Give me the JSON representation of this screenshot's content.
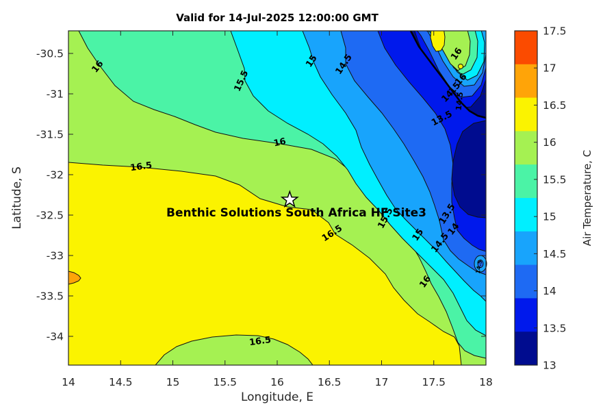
{
  "title": "Valid for 14-Jul-2025 12:00:00 GMT",
  "axes": {
    "xlabel": "Longitude, E",
    "ylabel": "Latitude, S",
    "xticks": [
      "14",
      "14.5",
      "15",
      "15.5",
      "16",
      "16.5",
      "17",
      "17.5",
      "18"
    ],
    "yticks": [
      "-30.5",
      "-31",
      "-31.5",
      "-32",
      "-32.5",
      "-33",
      "-33.5",
      "-34"
    ],
    "xlim": [
      14,
      18
    ],
    "ylim": [
      -34.36,
      -30.22
    ]
  },
  "colorbar": {
    "label": "Air Temperature, C",
    "ticks": [
      "17.5",
      "17",
      "16.5",
      "16",
      "15.5",
      "15",
      "14.5",
      "14",
      "13.5",
      "13"
    ],
    "colors_top_to_bottom": [
      "#FB4B00",
      "#FFA408",
      "#FBF300",
      "#A5F152",
      "#4BF3A6",
      "#00EFFF",
      "#18A4FC",
      "#1E6AF3",
      "#0019EC",
      "#000C8F"
    ]
  },
  "chart_data": {
    "type": "contour",
    "title": "Valid for 14-Jul-2025 12:00:00 GMT",
    "xlabel": "Longitude, E",
    "ylabel": "Latitude, S",
    "x_range": [
      14,
      18
    ],
    "y_range": [
      -34.36,
      -30.22
    ],
    "colorbar_label": "Air Temperature, C",
    "contour_levels": [
      13.5,
      14,
      14.5,
      15,
      15.5,
      16,
      16.5
    ],
    "band_colors": {
      "13-13.5": "#000C8F",
      "13.5-14": "#0019EC",
      "14-14.5": "#1E6AF3",
      "14.5-15": "#18A4FC",
      "15-15.5": "#00EFFF",
      "15.5-16": "#4BF3A6",
      "16-16.5": "#A5F152",
      "16.5-17": "#FBF300",
      "17-17.5": "#FFA408",
      "17.5-18": "#FB4B00"
    },
    "gradient_description": "warm yellow (>16.5 C) in the southwest, bands cooling toward a dark-blue (<13.5 C) pocket in the northeast; warm eddy with small yellow cores near the top-right corner; small orange warm spot (17-17.5 C) on the west edge near -33.27; cooler 16-16.5 C lobe on the bottom edge near 15.8 E",
    "site": {
      "label": "Benthic Solutions South Africa HF Site3",
      "lon": 16.12,
      "lat": -32.31,
      "marker": "star"
    },
    "contour_labels": [
      {
        "v": "16",
        "lon": 14.3,
        "lat": -30.65,
        "rot": -52
      },
      {
        "v": "16.5",
        "lon": 14.7,
        "lat": -31.9,
        "rot": -8
      },
      {
        "v": "15.5",
        "lon": 15.68,
        "lat": -30.82,
        "rot": -66
      },
      {
        "v": "16",
        "lon": 16.03,
        "lat": -31.6,
        "rot": -12
      },
      {
        "v": "15",
        "lon": 16.35,
        "lat": -30.58,
        "rot": -56
      },
      {
        "v": "14.5",
        "lon": 16.66,
        "lat": -30.62,
        "rot": -56
      },
      {
        "v": "16.5",
        "lon": 16.54,
        "lat": -32.72,
        "rot": -33
      },
      {
        "v": "15.5",
        "lon": 17.06,
        "lat": -32.52,
        "rot": -62
      },
      {
        "v": "15",
        "lon": 17.37,
        "lat": -32.73,
        "rot": -56
      },
      {
        "v": "14.5",
        "lon": 17.58,
        "lat": -32.83,
        "rot": -52
      },
      {
        "v": "14",
        "lon": 17.71,
        "lat": -32.66,
        "rot": -52
      },
      {
        "v": "16",
        "lon": 17.44,
        "lat": -33.31,
        "rot": -55
      },
      {
        "v": "16.5",
        "lon": 15.84,
        "lat": -34.06,
        "rot": -8
      },
      {
        "v": "16",
        "lon": 17.74,
        "lat": -30.49,
        "rot": -56
      },
      {
        "v": "16",
        "lon": 17.78,
        "lat": -30.81,
        "rot": -48
      },
      {
        "v": "15",
        "lon": 17.72,
        "lat": -30.92,
        "rot": -48
      },
      {
        "v": "14",
        "lon": 17.65,
        "lat": -31.02,
        "rot": -46
      },
      {
        "v": "14.5",
        "lon": 17.77,
        "lat": -31.06,
        "rot": -84,
        "size": 11
      },
      {
        "v": "13.5",
        "lon": 17.59,
        "lat": -31.3,
        "rot": -28
      },
      {
        "v": "13.5",
        "lon": 17.65,
        "lat": -32.47,
        "rot": -58
      },
      {
        "v": "14.5",
        "lon": 17.95,
        "lat": -33.11,
        "rot": -80,
        "size": 8
      }
    ]
  }
}
